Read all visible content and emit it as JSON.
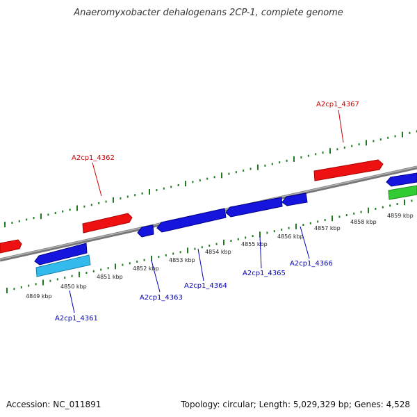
{
  "title": "Anaeromyxobacter dehalogenans 2CP-1, complete genome",
  "footer": {
    "accession": "Accession: NC_011891",
    "summary": "Topology: circular; Length: 5,029,329 bp; Genes: 4,528"
  },
  "colors": {
    "backbone": "#808080",
    "tick": "#1f7a1f",
    "forward_gene": "#ee1111",
    "reverse_gene": "#1515dd",
    "light_blue_gene": "#33bbee",
    "green_gene": "#33cc33",
    "forward_label": "#cc0000",
    "reverse_label": "#0000bb"
  },
  "scale": {
    "ticks": [
      "4849 kbp",
      "4850 kbp",
      "4851 kbp",
      "4852 kbp",
      "4853 kbp",
      "4854 kbp",
      "4855 kbp",
      "4856 kbp",
      "4857 kbp",
      "4858 kbp",
      "4859 kbp"
    ]
  },
  "genes": {
    "forward_labels": [
      "A2cp1_4362",
      "A2cp1_4367"
    ],
    "reverse_labels": [
      "A2cp1_4361",
      "A2cp1_4363",
      "A2cp1_4364",
      "A2cp1_4365",
      "A2cp1_4366"
    ]
  }
}
